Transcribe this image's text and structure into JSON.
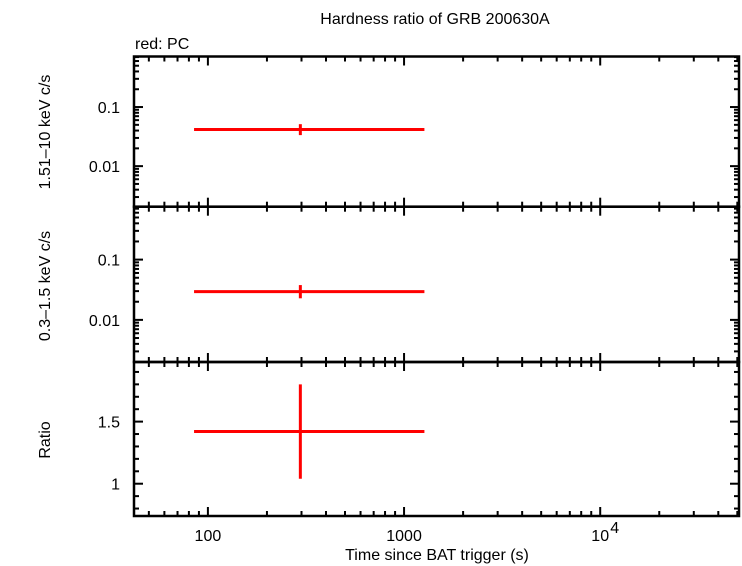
{
  "chart_data": {
    "type": "scatter",
    "title": "Hardness ratio of GRB 200630A",
    "legend": "red: PC",
    "xlabel": "Time since BAT trigger (s)",
    "x_scale": "log",
    "xlim": [
      42,
      51000
    ],
    "x_ticks": [
      {
        "value": 100,
        "label": "100"
      },
      {
        "value": 1000,
        "label": "1000"
      },
      {
        "value": 10000,
        "label": "10",
        "sup": "4"
      }
    ],
    "series_color": "#ff0000",
    "panels": [
      {
        "ylabel": "1.51–10 keV c/s",
        "y_scale": "log",
        "ylim": [
          0.00206,
          0.716
        ],
        "y_ticks": [
          {
            "value": 0.1,
            "label": "0.1"
          },
          {
            "value": 0.01,
            "label": "0.01"
          }
        ],
        "points": [
          {
            "x": 296,
            "x_low": 85,
            "x_high": 1270,
            "y": 0.0416,
            "y_low": 0.0335,
            "y_high": 0.0513
          }
        ]
      },
      {
        "ylabel": "0.3–1.5 keV c/s",
        "y_scale": "log",
        "ylim": [
          0.002,
          0.755
        ],
        "y_ticks": [
          {
            "value": 0.1,
            "label": "0.1"
          },
          {
            "value": 0.01,
            "label": "0.01"
          }
        ],
        "points": [
          {
            "x": 296,
            "x_low": 85,
            "x_high": 1270,
            "y": 0.0294,
            "y_low": 0.0228,
            "y_high": 0.0378
          }
        ]
      },
      {
        "ylabel": "Ratio",
        "y_scale": "linear",
        "ylim": [
          0.74,
          1.98
        ],
        "y_ticks": [
          {
            "value": 1.5,
            "label": "1.5"
          },
          {
            "value": 1,
            "label": "1"
          }
        ],
        "y_minor_step": 0.1,
        "points": [
          {
            "x": 296,
            "x_low": 85,
            "x_high": 1270,
            "y": 1.42,
            "y_low": 1.04,
            "y_high": 1.8
          }
        ]
      }
    ]
  }
}
